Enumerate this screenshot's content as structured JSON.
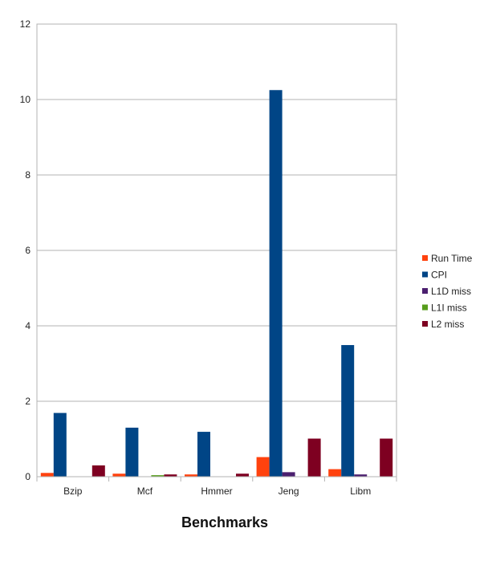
{
  "chart_data": {
    "type": "bar",
    "title": "",
    "xlabel": "Benchmarks",
    "ylabel": "",
    "ylim": [
      0,
      12
    ],
    "yticks": [
      0,
      2,
      4,
      6,
      8,
      10,
      12
    ],
    "grid": true,
    "legend_position": "right",
    "categories": [
      "Bzip",
      "Mcf",
      "Hmmer",
      "Jeng",
      "Libm"
    ],
    "series": [
      {
        "name": "Run Time",
        "color": "#ff420e",
        "values": [
          0.1,
          0.08,
          0.06,
          0.52,
          0.2
        ]
      },
      {
        "name": "CPI",
        "color": "#004586",
        "values": [
          1.69,
          1.3,
          1.19,
          10.25,
          3.49
        ]
      },
      {
        "name": "L1D miss",
        "color": "#4b1f6f",
        "values": [
          0.0,
          0.0,
          0.0,
          0.12,
          0.06
        ]
      },
      {
        "name": "L1I miss",
        "color": "#579d1c",
        "values": [
          0.0,
          0.04,
          0.0,
          0.0,
          0.0
        ]
      },
      {
        "name": "L2 miss",
        "color": "#7e0021",
        "values": [
          0.3,
          0.06,
          0.08,
          1.01,
          1.01
        ]
      }
    ]
  }
}
